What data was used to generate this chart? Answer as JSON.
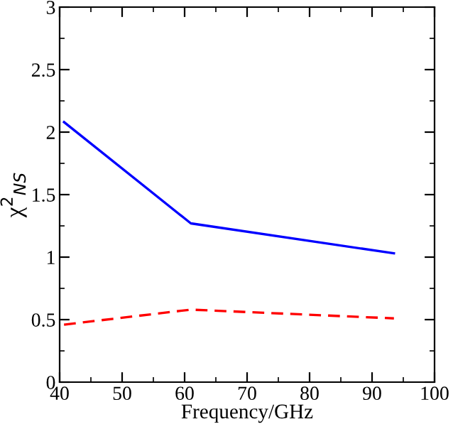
{
  "chart_data": {
    "type": "line",
    "xlabel": "Frequency/GHz",
    "ylabel": "χ$^{2}$$_{NS}$",
    "series": [
      {
        "color": "#0000ff",
        "line_style": "solid",
        "x": [
          40.7,
          61,
          93.5
        ],
        "values": [
          2.08,
          1.27,
          1.03
        ]
      },
      {
        "color": "#ff0000",
        "line_style": "dashed",
        "x": [
          40.7,
          61,
          93.5
        ],
        "values": [
          0.46,
          0.58,
          0.51
        ]
      }
    ],
    "xlim": [
      40,
      100
    ],
    "xticks": [
      40,
      50,
      60,
      70,
      80,
      90,
      100
    ],
    "ylim": [
      0,
      3
    ],
    "yticks": [
      0,
      0.5,
      1,
      1.5,
      2,
      2.5,
      3
    ],
    "grid": false,
    "legend": false,
    "marker": "none"
  }
}
